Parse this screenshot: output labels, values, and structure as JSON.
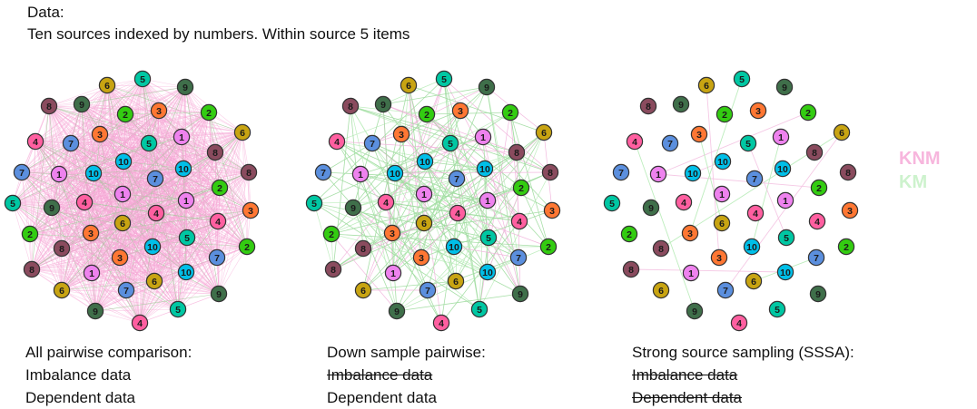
{
  "header": {
    "line1": "Data:",
    "line2": "Ten sources  indexed by numbers. Within source 5 items"
  },
  "legend": {
    "knm_label": "KNM",
    "km_label": "KM",
    "knm_color": "#f7b6dd",
    "km_color": "#cdf2cd"
  },
  "source_colors": {
    "1": "#ee82ee",
    "2": "#33cc11",
    "3": "#ff7733",
    "4": "#ff5fa0",
    "5": "#00c7a3",
    "6": "#c8a412",
    "7": "#5b8fde",
    "8": "#8a4b5e",
    "9": "#3f6f4a",
    "10": "#00bfe8"
  },
  "panels": [
    {
      "caption": [
        "All pairwise comparison:",
        "Imbalance data",
        "Dependent data"
      ],
      "struck": [
        false,
        false,
        false
      ],
      "edges": "all"
    },
    {
      "caption": [
        "Down sample pairwise:",
        "Imbalance data",
        "Dependent data"
      ],
      "struck": [
        false,
        true,
        false
      ],
      "edges": "sampled"
    },
    {
      "caption": [
        "Strong source sampling (SSSA):",
        "Imbalance data",
        "Dependent data"
      ],
      "struck": [
        false,
        true,
        true
      ],
      "edges": "sparse"
    }
  ]
}
